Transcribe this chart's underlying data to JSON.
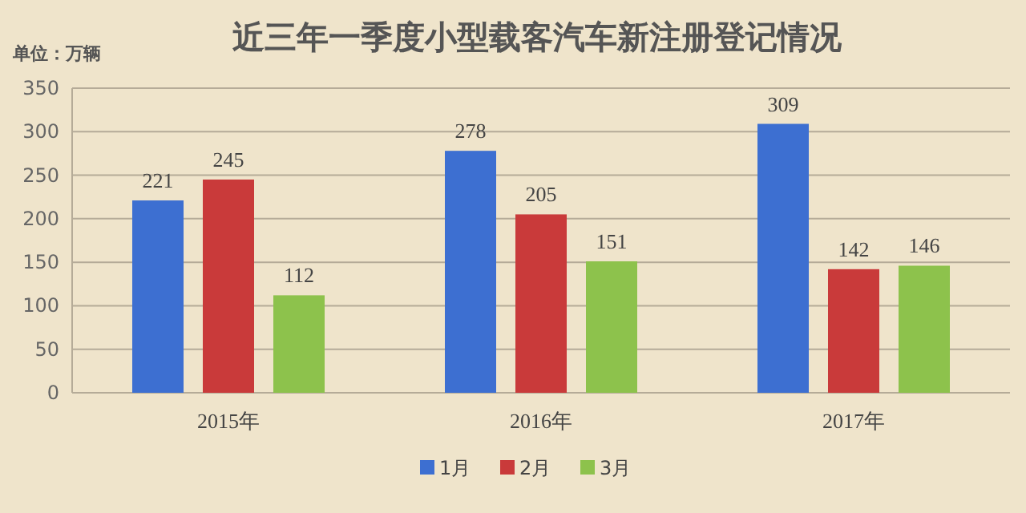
{
  "chart_data": {
    "type": "bar",
    "title": "近三年一季度小型载客汽车新注册登记情况",
    "ylabel": "单位：万辆",
    "categories": [
      "2015年",
      "2016年",
      "2017年"
    ],
    "series": [
      {
        "name": "1月",
        "color": "#3d6fd1",
        "values": [
          221,
          278,
          309
        ]
      },
      {
        "name": "2月",
        "color": "#c93a3a",
        "values": [
          245,
          205,
          142
        ]
      },
      {
        "name": "3月",
        "color": "#8dc24c",
        "values": [
          112,
          151,
          146
        ]
      }
    ],
    "ylim": [
      0,
      350
    ],
    "yticks": [
      0,
      50,
      100,
      150,
      200,
      250,
      300,
      350
    ],
    "grid": "y",
    "legend": "bottom",
    "data_labels": true
  }
}
